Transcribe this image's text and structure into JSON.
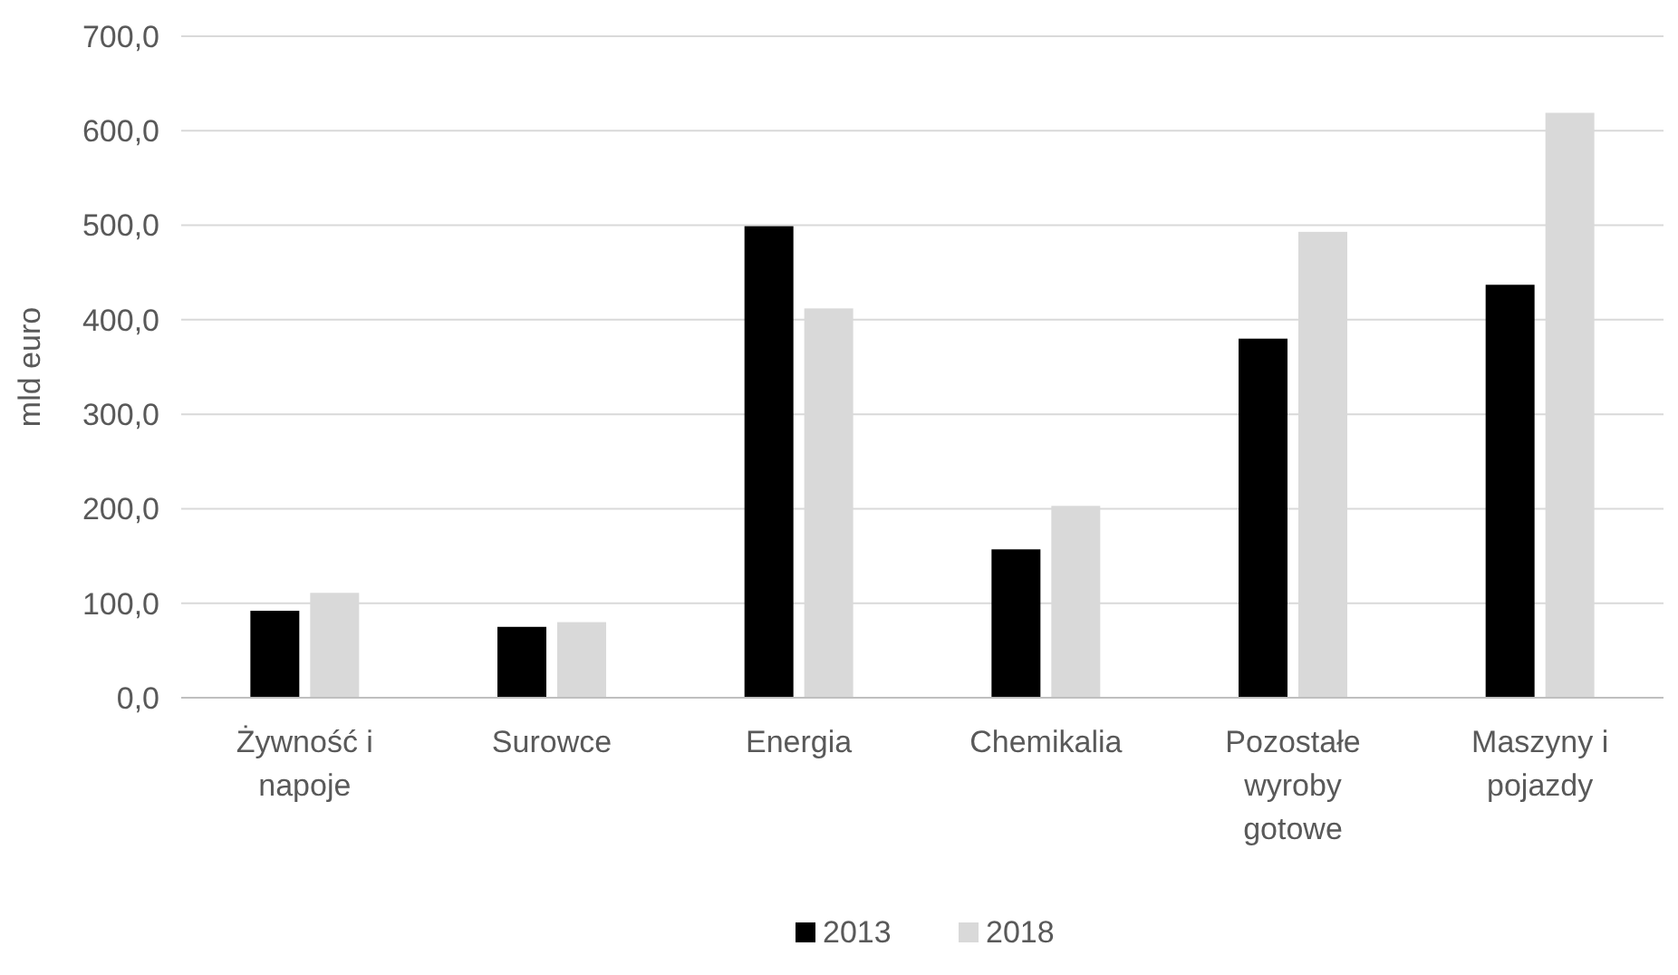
{
  "chart_data": {
    "type": "bar",
    "ylabel": "mld euro",
    "categories": [
      "Żywność i napoje",
      "Surowce",
      "Energia",
      "Chemikalia",
      "Pozostałe wyroby gotowe",
      "Maszyny i pojazdy"
    ],
    "series": [
      {
        "name": "2013",
        "color": "#000000",
        "values": [
          92,
          75,
          499,
          157,
          380,
          437
        ]
      },
      {
        "name": "2018",
        "color": "#d9d9d9",
        "values": [
          111,
          80,
          412,
          203,
          493,
          619
        ]
      }
    ],
    "ylim": [
      0,
      700
    ],
    "yticks": [
      {
        "value": 0,
        "label": "0,0"
      },
      {
        "value": 100,
        "label": "100,0"
      },
      {
        "value": 200,
        "label": "200,0"
      },
      {
        "value": 300,
        "label": "300,0"
      },
      {
        "value": 400,
        "label": "400,0"
      },
      {
        "value": 500,
        "label": "500,0"
      },
      {
        "value": 600,
        "label": "600,0"
      },
      {
        "value": 700,
        "label": "700,0"
      }
    ],
    "grid": "y",
    "legend": "bottom"
  }
}
